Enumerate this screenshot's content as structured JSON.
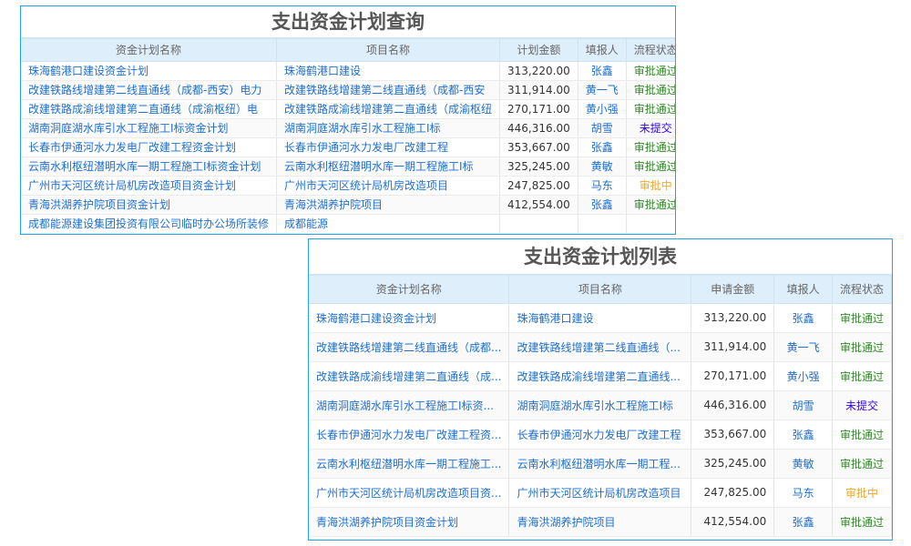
{
  "colors": {
    "border": "#1fa7e8",
    "header_bg": "#deeefa",
    "link": "#1e6fd0",
    "approved": "#2e8b22",
    "not_submitted": "#3300ff",
    "in_review": "#f5a623"
  },
  "query_panel": {
    "title": "支出资金计划查询",
    "headers": [
      "资金计划名称",
      "项目名称",
      "计划金额",
      "填报人",
      "流程状态"
    ],
    "rows": [
      [
        "珠海鹤港口建设资金计划",
        "珠海鹤港口建设",
        "313,220.00",
        "张鑫",
        "审批通过"
      ],
      [
        "改建铁路线增建第二线直通线（成都-西安）电力",
        "改建铁路线增建第二线直通线（成都-西安",
        "311,914.00",
        "黄一飞",
        "审批通过"
      ],
      [
        "改建铁路成渝线增建第二直通线（成渝枢纽）电",
        "改建铁路成渝线增建第二直通线（成渝枢纽",
        "270,171.00",
        "黄小强",
        "审批通过"
      ],
      [
        "湖南洞庭湖水库引水工程施工I标资金计划",
        "湖南洞庭湖水库引水工程施工I标",
        "446,316.00",
        "胡雪",
        "未提交"
      ],
      [
        "长春市伊通河水力发电厂改建工程资金计划",
        "长春市伊通河水力发电厂改建工程",
        "353,667.00",
        "张鑫",
        "审批通过"
      ],
      [
        "云南水利枢纽潜明水库一期工程施工I标资金计划",
        "云南水利枢纽潜明水库一期工程施工I标",
        "325,245.00",
        "黄敏",
        "审批通过"
      ],
      [
        "广州市天河区统计局机房改造项目资金计划",
        "广州市天河区统计局机房改造项目",
        "247,825.00",
        "马东",
        "审批中"
      ],
      [
        "青海洪湖养护院项目资金计划",
        "青海洪湖养护院项目",
        "412,554.00",
        "张鑫",
        "审批通过"
      ],
      [
        "成都能源建设集团投资有限公司临时办公场所装修",
        "成都能源",
        "",
        "",
        ""
      ]
    ]
  },
  "list_panel": {
    "title": "支出资金计划列表",
    "headers": [
      "资金计划名称",
      "项目名称",
      "申请金额",
      "填报人",
      "流程状态"
    ],
    "rows": [
      [
        "珠海鹤港口建设资金计划",
        "珠海鹤港口建设",
        "313,220.00",
        "张鑫",
        "审批通过"
      ],
      [
        "改建铁路线增建第二线直通线（成都...",
        "改建铁路线增建第二线直通线（...",
        "311,914.00",
        "黄一飞",
        "审批通过"
      ],
      [
        "改建铁路成渝线增建第二直通线（成...",
        "改建铁路成渝线增建第二直通线...",
        "270,171.00",
        "黄小强",
        "审批通过"
      ],
      [
        "湖南洞庭湖水库引水工程施工I标资...",
        "湖南洞庭湖水库引水工程施工I标",
        "446,316.00",
        "胡雪",
        "未提交"
      ],
      [
        "长春市伊通河水力发电厂改建工程资...",
        "长春市伊通河水力发电厂改建工程",
        "353,667.00",
        "张鑫",
        "审批通过"
      ],
      [
        "云南水利枢纽潜明水库一期工程施工...",
        "云南水利枢纽潜明水库一期工程...",
        "325,245.00",
        "黄敏",
        "审批通过"
      ],
      [
        "广州市天河区统计局机房改造项目资...",
        "广州市天河区统计局机房改造项目",
        "247,825.00",
        "马东",
        "审批中"
      ],
      [
        "青海洪湖养护院项目资金计划",
        "青海洪湖养护院项目",
        "412,554.00",
        "张鑫",
        "审批通过"
      ]
    ]
  }
}
